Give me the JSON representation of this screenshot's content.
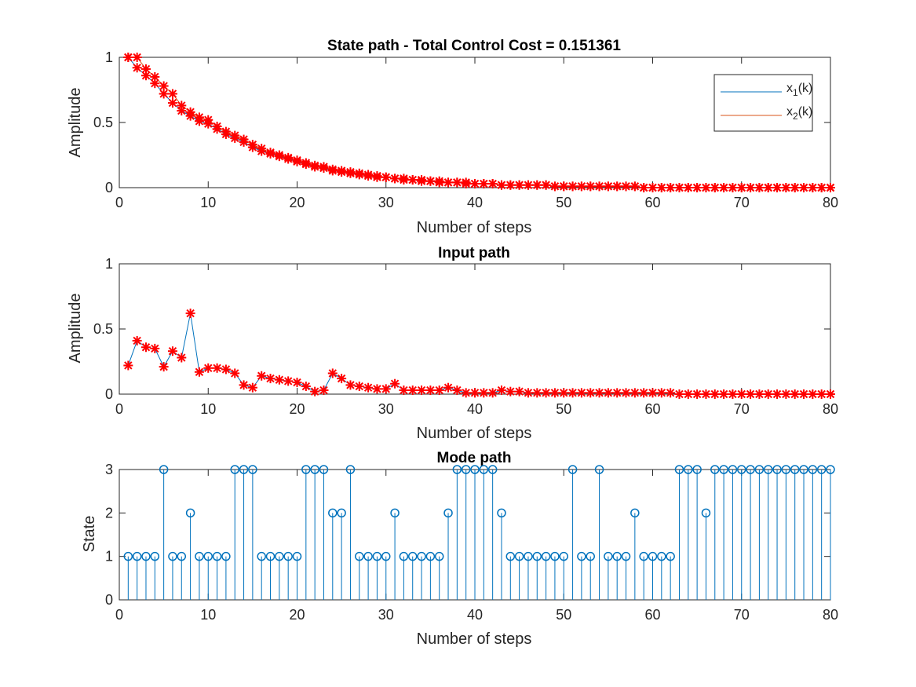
{
  "chart_data": [
    {
      "type": "line",
      "title": "State path - Total Control Cost = 0.151361",
      "xlabel": "Number of steps",
      "ylabel": "Amplitude",
      "xlim": [
        0,
        80
      ],
      "ylim": [
        0,
        1
      ],
      "xticks": [
        "0",
        "10",
        "20",
        "30",
        "40",
        "50",
        "60",
        "70",
        "80"
      ],
      "yticks": [
        "0",
        "0.5",
        "1"
      ],
      "legend": {
        "placement": "top-right",
        "entries": [
          {
            "label_main": "x",
            "label_sub": "1",
            "label_tail": "(k)",
            "color": "#0072BD"
          },
          {
            "label_main": "x",
            "label_sub": "2",
            "label_tail": "(k)",
            "color": "#D95319"
          }
        ]
      },
      "marker_color": "#FF0000",
      "series": [
        {
          "name": "x1(k)",
          "color": "#0072BD",
          "x": [
            1,
            2,
            3,
            4,
            5,
            6,
            7,
            8,
            9,
            10,
            11,
            12,
            13,
            14,
            15,
            16,
            17,
            18,
            19,
            20,
            21,
            22,
            23,
            24,
            25,
            26,
            27,
            28,
            29,
            30,
            31,
            32,
            33,
            34,
            35,
            36,
            37,
            38,
            39,
            40,
            41,
            42,
            43,
            44,
            45,
            46,
            47,
            48,
            49,
            50,
            51,
            52,
            53,
            54,
            55,
            56,
            57,
            58,
            59,
            60,
            61,
            62,
            63,
            64,
            65,
            66,
            67,
            68,
            69,
            70,
            71,
            72,
            73,
            74,
            75,
            76,
            77,
            78,
            79,
            80
          ],
          "values": [
            1.0,
            0.92,
            0.86,
            0.8,
            0.72,
            0.65,
            0.59,
            0.55,
            0.51,
            0.49,
            0.45,
            0.41,
            0.38,
            0.35,
            0.31,
            0.28,
            0.26,
            0.24,
            0.22,
            0.2,
            0.18,
            0.16,
            0.15,
            0.13,
            0.12,
            0.11,
            0.1,
            0.09,
            0.08,
            0.08,
            0.07,
            0.06,
            0.06,
            0.05,
            0.05,
            0.04,
            0.04,
            0.04,
            0.03,
            0.03,
            0.03,
            0.03,
            0.02,
            0.02,
            0.02,
            0.02,
            0.02,
            0.02,
            0.01,
            0.01,
            0.01,
            0.01,
            0.01,
            0.01,
            0.01,
            0.01,
            0.01,
            0.01,
            0.0,
            0.0,
            0.0,
            0.0,
            0.0,
            0.0,
            0.0,
            0.0,
            0.0,
            0.0,
            0.0,
            0.0,
            0.0,
            0.0,
            0.0,
            0.0,
            0.0,
            0.0,
            0.0,
            0.0,
            0.0,
            0.0
          ]
        },
        {
          "name": "x2(k)",
          "color": "#D95319",
          "x": [
            1,
            2,
            3,
            4,
            5,
            6,
            7,
            8,
            9,
            10,
            11,
            12,
            13,
            14,
            15,
            16,
            17,
            18,
            19,
            20,
            21,
            22,
            23,
            24,
            25,
            26,
            27,
            28,
            29,
            30,
            31,
            32,
            33,
            34,
            35,
            36,
            37,
            38,
            39,
            40,
            41,
            42,
            43,
            44,
            45,
            46,
            47,
            48,
            49,
            50,
            51,
            52,
            53,
            54,
            55,
            56,
            57,
            58,
            59,
            60,
            61,
            62,
            63,
            64,
            65,
            66,
            67,
            68,
            69,
            70,
            71,
            72,
            73,
            74,
            75,
            76,
            77,
            78,
            79,
            80
          ],
          "values": [
            1.0,
            1.0,
            0.91,
            0.85,
            0.78,
            0.72,
            0.63,
            0.58,
            0.54,
            0.52,
            0.47,
            0.43,
            0.4,
            0.37,
            0.33,
            0.3,
            0.27,
            0.25,
            0.23,
            0.21,
            0.19,
            0.17,
            0.16,
            0.14,
            0.13,
            0.12,
            0.11,
            0.1,
            0.09,
            0.08,
            0.07,
            0.07,
            0.06,
            0.06,
            0.05,
            0.05,
            0.04,
            0.04,
            0.04,
            0.03,
            0.03,
            0.03,
            0.02,
            0.02,
            0.02,
            0.02,
            0.02,
            0.02,
            0.01,
            0.01,
            0.01,
            0.01,
            0.01,
            0.01,
            0.01,
            0.01,
            0.01,
            0.01,
            0.0,
            0.0,
            0.0,
            0.0,
            0.0,
            0.0,
            0.0,
            0.0,
            0.0,
            0.0,
            0.0,
            0.0,
            0.0,
            0.0,
            0.0,
            0.0,
            0.0,
            0.0,
            0.0,
            0.0,
            0.0,
            0.0
          ]
        }
      ]
    },
    {
      "type": "line",
      "title": "Input path",
      "xlabel": "Number of steps",
      "ylabel": "Amplitude",
      "xlim": [
        0,
        80
      ],
      "ylim": [
        0,
        1
      ],
      "xticks": [
        "0",
        "10",
        "20",
        "30",
        "40",
        "50",
        "60",
        "70",
        "80"
      ],
      "yticks": [
        "0",
        "0.5",
        "1"
      ],
      "line_color": "#0072BD",
      "marker_color": "#FF0000",
      "x": [
        1,
        2,
        3,
        4,
        5,
        6,
        7,
        8,
        9,
        10,
        11,
        12,
        13,
        14,
        15,
        16,
        17,
        18,
        19,
        20,
        21,
        22,
        23,
        24,
        25,
        26,
        27,
        28,
        29,
        30,
        31,
        32,
        33,
        34,
        35,
        36,
        37,
        38,
        39,
        40,
        41,
        42,
        43,
        44,
        45,
        46,
        47,
        48,
        49,
        50,
        51,
        52,
        53,
        54,
        55,
        56,
        57,
        58,
        59,
        60,
        61,
        62,
        63,
        64,
        65,
        66,
        67,
        68,
        69,
        70,
        71,
        72,
        73,
        74,
        75,
        76,
        77,
        78,
        79,
        80
      ],
      "values": [
        0.22,
        0.41,
        0.36,
        0.35,
        0.21,
        0.33,
        0.28,
        0.62,
        0.17,
        0.2,
        0.2,
        0.19,
        0.16,
        0.07,
        0.05,
        0.14,
        0.12,
        0.11,
        0.1,
        0.09,
        0.06,
        0.02,
        0.03,
        0.16,
        0.12,
        0.07,
        0.06,
        0.05,
        0.04,
        0.04,
        0.08,
        0.03,
        0.03,
        0.03,
        0.03,
        0.03,
        0.05,
        0.03,
        0.01,
        0.01,
        0.01,
        0.01,
        0.03,
        0.02,
        0.02,
        0.01,
        0.01,
        0.01,
        0.01,
        0.01,
        0.01,
        0.01,
        0.01,
        0.01,
        0.01,
        0.01,
        0.01,
        0.01,
        0.01,
        0.01,
        0.01,
        0.01,
        0.0,
        0.0,
        0.0,
        0.0,
        0.0,
        0.0,
        0.0,
        0.0,
        0.0,
        0.0,
        0.0,
        0.0,
        0.0,
        0.0,
        0.0,
        0.0,
        0.0,
        0.0
      ]
    },
    {
      "type": "stem",
      "title": "Mode path",
      "xlabel": "Number of steps",
      "ylabel": "State",
      "xlim": [
        0,
        80
      ],
      "ylim": [
        0,
        3
      ],
      "xticks": [
        "0",
        "10",
        "20",
        "30",
        "40",
        "50",
        "60",
        "70",
        "80"
      ],
      "yticks": [
        "0",
        "1",
        "2",
        "3"
      ],
      "color": "#0072BD",
      "x": [
        1,
        2,
        3,
        4,
        5,
        6,
        7,
        8,
        9,
        10,
        11,
        12,
        13,
        14,
        15,
        16,
        17,
        18,
        19,
        20,
        21,
        22,
        23,
        24,
        25,
        26,
        27,
        28,
        29,
        30,
        31,
        32,
        33,
        34,
        35,
        36,
        37,
        38,
        39,
        40,
        41,
        42,
        43,
        44,
        45,
        46,
        47,
        48,
        49,
        50,
        51,
        52,
        53,
        54,
        55,
        56,
        57,
        58,
        59,
        60,
        61,
        62,
        63,
        64,
        65,
        66,
        67,
        68,
        69,
        70,
        71,
        72,
        73,
        74,
        75,
        76,
        77,
        78,
        79,
        80
      ],
      "values": [
        1,
        1,
        1,
        1,
        3,
        1,
        1,
        2,
        1,
        1,
        1,
        1,
        3,
        3,
        3,
        1,
        1,
        1,
        1,
        1,
        3,
        3,
        3,
        2,
        2,
        3,
        1,
        1,
        1,
        1,
        2,
        1,
        1,
        1,
        1,
        1,
        2,
        3,
        3,
        3,
        3,
        3,
        2,
        1,
        1,
        1,
        1,
        1,
        1,
        1,
        3,
        1,
        1,
        3,
        1,
        1,
        1,
        2,
        1,
        1,
        1,
        1,
        3,
        3,
        3,
        2,
        3,
        3,
        3,
        3,
        3,
        3,
        3,
        3,
        3,
        3,
        3,
        3,
        3,
        3
      ]
    }
  ]
}
